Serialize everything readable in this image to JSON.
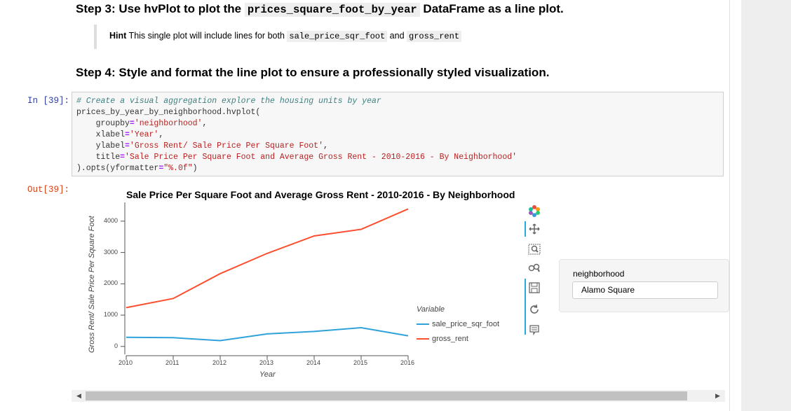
{
  "step3": {
    "before": "Step 3: Use hvPlot to plot the ",
    "code": "prices_square_foot_by_year",
    "after": " DataFrame as a line plot."
  },
  "hint": {
    "label": "Hint",
    "text1": " This single plot will include lines for both ",
    "code1": "sale_price_sqr_foot",
    "text2": " and ",
    "code2": "gross_rent"
  },
  "step4": "Step 4: Style and format the line plot to ensure a professionally styled visualization.",
  "cell": {
    "in_prompt": "In [39]:",
    "out_prompt": "Out[39]:",
    "code": {
      "comment": "# Create a visual aggregation explore the housing units by year",
      "call": "prices_by_year_by_neighborhood.hvplot(",
      "groupby_kw": "    groupby",
      "groupby_val": "'neighborhood'",
      "xlabel_kw": "    xlabel",
      "xlabel_val": "'Year'",
      "ylabel_kw": "    ylabel",
      "ylabel_val": "'Gross Rent/ Sale Price Per Square Foot'",
      "title_kw": "    title",
      "title_val": "'Sale Price Per Square Foot and Average Gross Rent - 2010-2016 - By Neighborhood'",
      "opts_start": ").opts(yformatter",
      "opts_val": "\"%.0f\"",
      "opts_end": ")"
    }
  },
  "chart_data": {
    "type": "line",
    "title": "Sale Price Per Square Foot and Average Gross Rent - 2010-2016 - By Neighborhood",
    "xlabel": "Year",
    "ylabel": "Gross Rent/ Sale Price Per Square Foot",
    "x": [
      2010,
      2011,
      2012,
      2013,
      2014,
      2015,
      2016
    ],
    "xlim": [
      2010,
      2016
    ],
    "ylim": [
      -250,
      4600
    ],
    "yticks": [
      0,
      1000,
      2000,
      3000,
      4000
    ],
    "xticks": [
      2010,
      2011,
      2012,
      2013,
      2014,
      2015,
      2016
    ],
    "grid": false,
    "legend_title": "Variable",
    "legend_placement": "bottom-right",
    "series": [
      {
        "name": "sale_price_sqr_foot",
        "color": "#30a2da",
        "values": [
          291,
          280,
          185,
          400,
          480,
          600,
          340
        ]
      },
      {
        "name": "gross_rent",
        "color": "#fc4f30",
        "values": [
          1239,
          1530,
          2324,
          2971,
          3528,
          3739,
          4390
        ]
      }
    ]
  },
  "widget": {
    "label": "neighborhood",
    "selected": "Alamo Square"
  },
  "toolbar_icons": [
    "bokeh-logo-icon",
    "pan-icon",
    "box-zoom-icon",
    "wheel-zoom-icon",
    "save-icon",
    "reset-icon",
    "hover-icon"
  ]
}
